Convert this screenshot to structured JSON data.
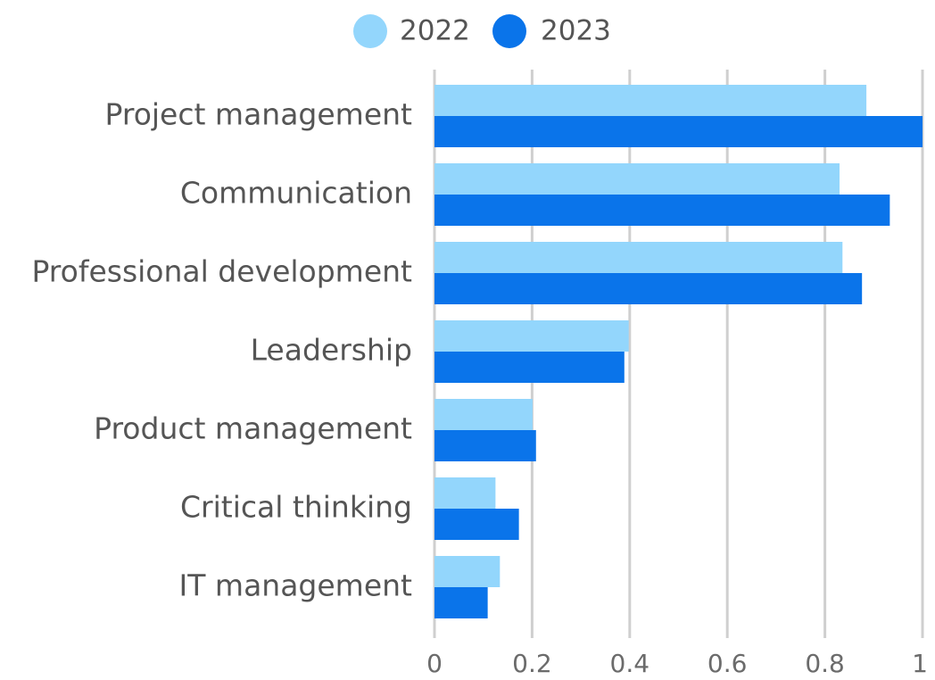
{
  "chart_data": {
    "type": "bar",
    "orientation": "horizontal",
    "categories": [
      "Project management",
      "Communication",
      "Professional development",
      "Leadership",
      "Product management",
      "Critical thinking",
      "IT management"
    ],
    "series": [
      {
        "name": "2022",
        "color": "#93D6FC",
        "values": [
          0.885,
          0.83,
          0.836,
          0.398,
          0.201,
          0.125,
          0.134
        ]
      },
      {
        "name": "2023",
        "color": "#0A74EA",
        "values": [
          1.0,
          0.933,
          0.876,
          0.389,
          0.208,
          0.173,
          0.109
        ]
      }
    ],
    "xlim": [
      0,
      1
    ],
    "xticks": [
      0,
      0.2,
      0.4,
      0.6,
      0.8,
      1
    ],
    "xtick_labels": [
      "0",
      "0.2",
      "0.4",
      "0.6",
      "0.8",
      "1"
    ],
    "grid": "vertical",
    "legend_position": "top-center",
    "title": "",
    "xlabel": "",
    "ylabel": ""
  }
}
